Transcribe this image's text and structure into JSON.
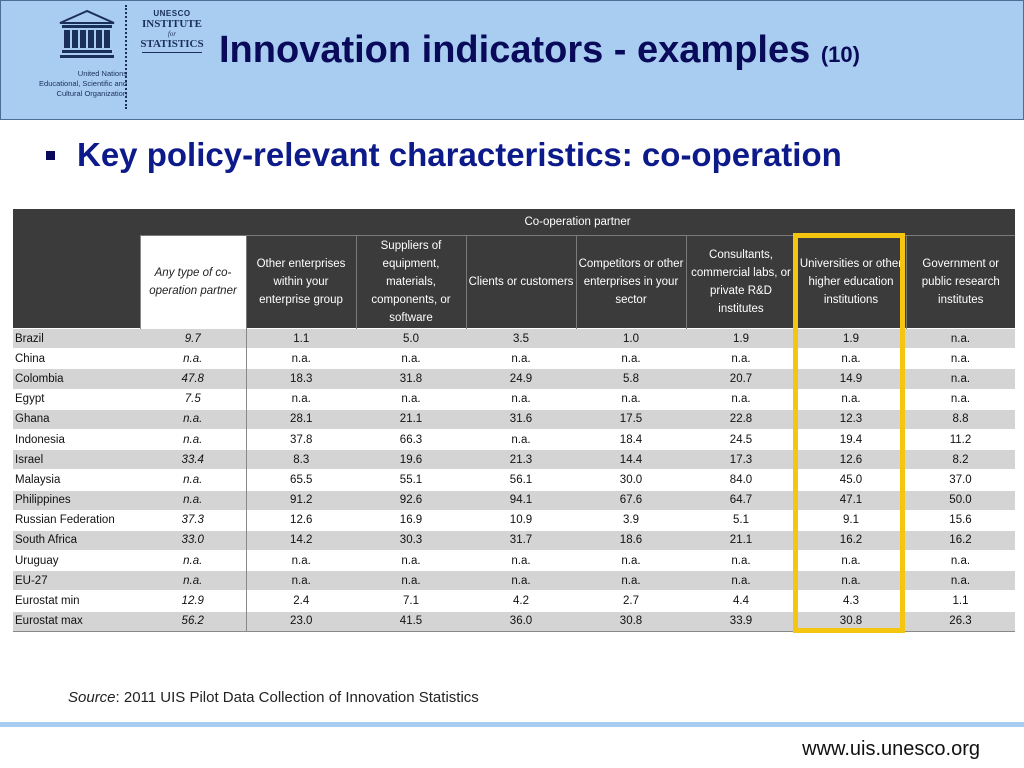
{
  "header": {
    "org_lines": [
      "United Nations",
      "Educational, Scientific and",
      "Cultural Organization"
    ],
    "unesco_logo_text": "UNESCO",
    "uis_logo": {
      "line1": "UNESCO",
      "line2": "INSTITUTE",
      "line3": "for",
      "line4": "STATISTICS"
    },
    "title": "Innovation indicators - examples",
    "title_number": "(10)"
  },
  "bullet": "Key policy-relevant characteristics: co-operation",
  "table": {
    "group_header": "Co-operation partner",
    "columns": [
      "Any type of co-operation partner",
      "Other enterprises within your enterprise group",
      "Suppliers of equipment, materials, components, or software",
      "Clients or customers",
      "Competitors or other enterprises in your sector",
      "Consultants, commercial labs, or private R&D institutes",
      "Universities or other higher education institutions",
      "Government or public research institutes"
    ],
    "rows": [
      {
        "country": "Brazil",
        "values": [
          "9.7",
          "1.1",
          "5.0",
          "3.5",
          "1.0",
          "1.9",
          "1.9",
          "n.a."
        ]
      },
      {
        "country": "China",
        "values": [
          "n.a.",
          "n.a.",
          "n.a.",
          "n.a.",
          "n.a.",
          "n.a.",
          "n.a.",
          "n.a."
        ]
      },
      {
        "country": "Colombia",
        "values": [
          "47.8",
          "18.3",
          "31.8",
          "24.9",
          "5.8",
          "20.7",
          "14.9",
          "n.a."
        ]
      },
      {
        "country": "Egypt",
        "values": [
          "7.5",
          "n.a.",
          "n.a.",
          "n.a.",
          "n.a.",
          "n.a.",
          "n.a.",
          "n.a."
        ]
      },
      {
        "country": "Ghana",
        "values": [
          "n.a.",
          "28.1",
          "21.1",
          "31.6",
          "17.5",
          "22.8",
          "12.3",
          "8.8"
        ]
      },
      {
        "country": "Indonesia",
        "values": [
          "n.a.",
          "37.8",
          "66.3",
          "n.a.",
          "18.4",
          "24.5",
          "19.4",
          "11.2"
        ]
      },
      {
        "country": "Israel",
        "values": [
          "33.4",
          "8.3",
          "19.6",
          "21.3",
          "14.4",
          "17.3",
          "12.6",
          "8.2"
        ]
      },
      {
        "country": "Malaysia",
        "values": [
          "n.a.",
          "65.5",
          "55.1",
          "56.1",
          "30.0",
          "84.0",
          "45.0",
          "37.0"
        ]
      },
      {
        "country": "Philippines",
        "values": [
          "n.a.",
          "91.2",
          "92.6",
          "94.1",
          "67.6",
          "64.7",
          "47.1",
          "50.0"
        ]
      },
      {
        "country": "Russian Federation",
        "values": [
          "37.3",
          "12.6",
          "16.9",
          "10.9",
          "3.9",
          "5.1",
          "9.1",
          "15.6"
        ]
      },
      {
        "country": "South Africa",
        "values": [
          "33.0",
          "14.2",
          "30.3",
          "31.7",
          "18.6",
          "21.1",
          "16.2",
          "16.2"
        ]
      },
      {
        "country": "Uruguay",
        "values": [
          "n.a.",
          "n.a.",
          "n.a.",
          "n.a.",
          "n.a.",
          "n.a.",
          "n.a.",
          "n.a."
        ]
      },
      {
        "country": "EU-27",
        "values": [
          "n.a.",
          "n.a.",
          "n.a.",
          "n.a.",
          "n.a.",
          "n.a.",
          "n.a.",
          "n.a."
        ]
      },
      {
        "country": "Eurostat min",
        "values": [
          "12.9",
          "2.4",
          "7.1",
          "4.2",
          "2.7",
          "4.4",
          "4.3",
          "1.1"
        ]
      },
      {
        "country": "Eurostat max",
        "values": [
          "56.2",
          "23.0",
          "41.5",
          "36.0",
          "30.8",
          "33.9",
          "30.8",
          "26.3"
        ]
      }
    ],
    "highlight_color": "#f4c60f"
  },
  "source": {
    "label": "Source",
    "text": ": 2011 UIS Pilot Data Collection of Innovation Statistics"
  },
  "footer_url": "www.uis.unesco.org",
  "colors": {
    "header_bg": "#a9cdf0",
    "title": "#0a0a5a",
    "bullet": "#0d1a8a",
    "table_header_bg": "#3b3b3b",
    "row_alt": "#d4d4d4"
  }
}
